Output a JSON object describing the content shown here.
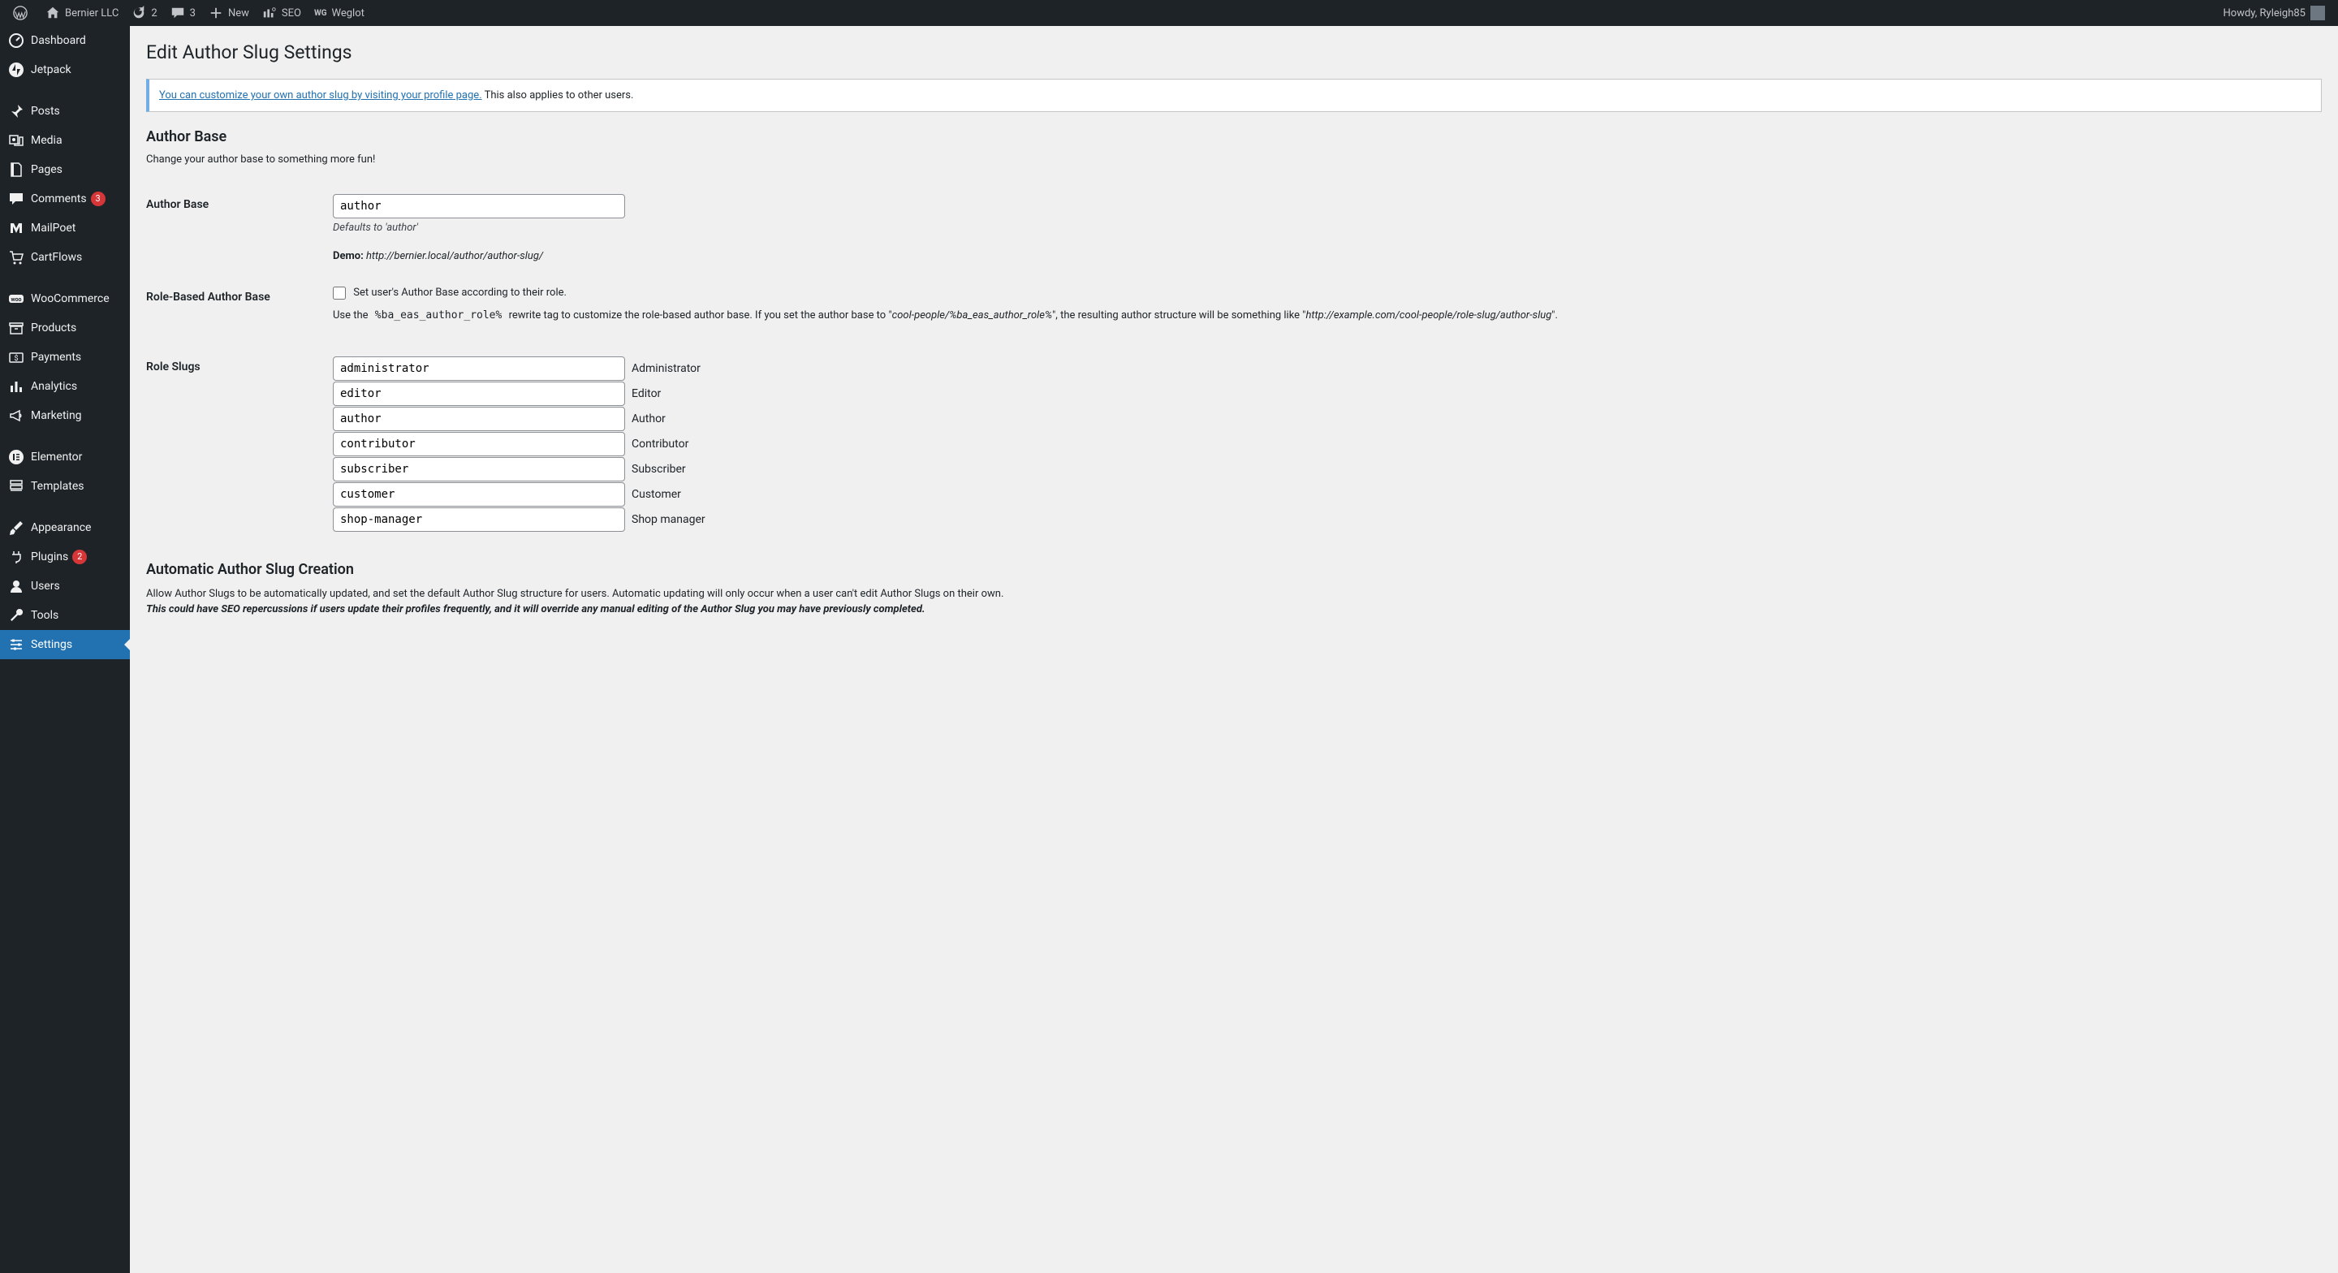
{
  "adminbar": {
    "site_name": "Bernier LLC",
    "updates": "2",
    "comments": "3",
    "new": "New",
    "seo": "SEO",
    "weglot": "Weglot",
    "howdy": "Howdy, Ryleigh85"
  },
  "sidebar": {
    "items": [
      {
        "label": "Dashboard",
        "icon": "dashboard"
      },
      {
        "label": "Jetpack",
        "icon": "jetpack"
      },
      {
        "sep": true
      },
      {
        "label": "Posts",
        "icon": "pin"
      },
      {
        "label": "Media",
        "icon": "media"
      },
      {
        "label": "Pages",
        "icon": "page"
      },
      {
        "label": "Comments",
        "icon": "comment",
        "badge": "3"
      },
      {
        "label": "MailPoet",
        "icon": "mailpoet"
      },
      {
        "label": "CartFlows",
        "icon": "cart"
      },
      {
        "sep": true
      },
      {
        "label": "WooCommerce",
        "icon": "woo"
      },
      {
        "label": "Products",
        "icon": "archive"
      },
      {
        "label": "Payments",
        "icon": "payments"
      },
      {
        "label": "Analytics",
        "icon": "chart"
      },
      {
        "label": "Marketing",
        "icon": "megaphone"
      },
      {
        "sep": true
      },
      {
        "label": "Elementor",
        "icon": "elementor"
      },
      {
        "label": "Templates",
        "icon": "templates"
      },
      {
        "sep": true
      },
      {
        "label": "Appearance",
        "icon": "brush"
      },
      {
        "label": "Plugins",
        "icon": "plug",
        "badge": "2"
      },
      {
        "label": "Users",
        "icon": "user"
      },
      {
        "label": "Tools",
        "icon": "wrench"
      },
      {
        "label": "Settings",
        "icon": "sliders",
        "current": true
      }
    ]
  },
  "page": {
    "title": "Edit Author Slug Settings",
    "notice_link": "You can customize your own author slug by visiting your profile page.",
    "notice_rest": " This also applies to other users.",
    "section_author_base": "Author Base",
    "author_base_desc": "Change your author base to something more fun!",
    "author_base_label": "Author Base",
    "author_base_value": "author",
    "author_base_default": "Defaults to 'author'",
    "demo_label": "Demo:",
    "demo_value": "http://bernier.local/author/author-slug/",
    "role_based_label": "Role-Based Author Base",
    "role_based_checkbox": "Set user's Author Base according to their role.",
    "role_help_pre": "Use the ",
    "role_help_code": "%ba_eas_author_role%",
    "role_help_mid": " rewrite tag to customize the role-based author base. If you set the author base to \"",
    "role_help_em1": "cool-people/%ba_eas_author_role%",
    "role_help_mid2": "\", the resulting author structure will be something like \"",
    "role_help_em2": "http://example.com/cool-people/role-slug/author-slug",
    "role_help_end": "\".",
    "role_slugs_label": "Role Slugs",
    "roles": [
      {
        "value": "administrator",
        "label": "Administrator"
      },
      {
        "value": "editor",
        "label": "Editor"
      },
      {
        "value": "author",
        "label": "Author"
      },
      {
        "value": "contributor",
        "label": "Contributor"
      },
      {
        "value": "subscriber",
        "label": "Subscriber"
      },
      {
        "value": "customer",
        "label": "Customer"
      },
      {
        "value": "shop-manager",
        "label": "Shop manager"
      }
    ],
    "section_auto": "Automatic Author Slug Creation",
    "auto_desc1": "Allow Author Slugs to be automatically updated, and set the default Author Slug structure for users. Automatic updating will only occur when a user can't edit Author Slugs on their own.",
    "auto_desc2": "This could have SEO repercussions if users update their profiles frequently, and it will override any manual editing of the Author Slug you may have previously completed."
  }
}
